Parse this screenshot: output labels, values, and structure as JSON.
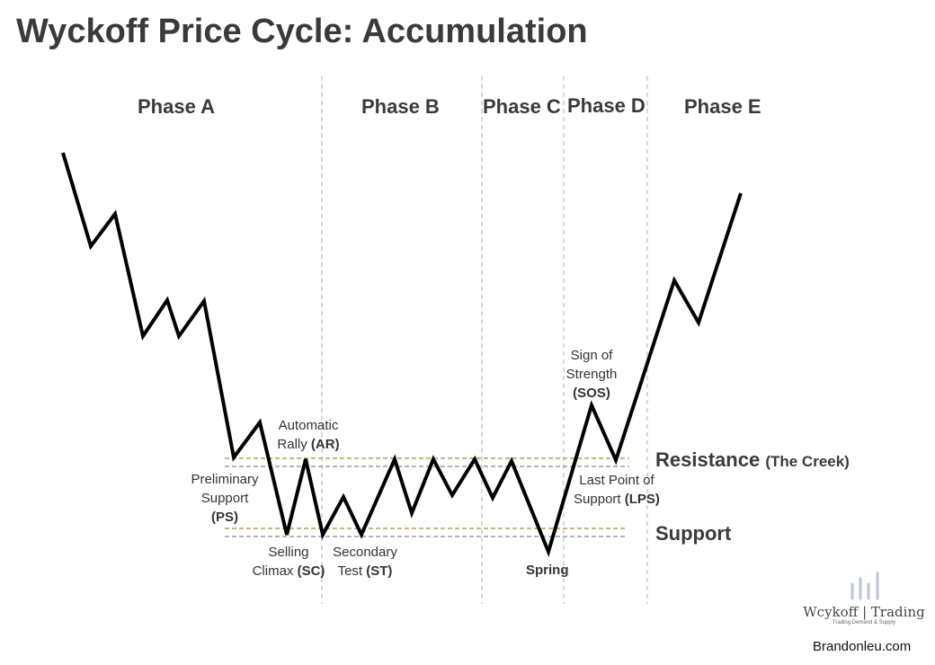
{
  "title": "Wyckoff Price Cycle: Accumulation",
  "phases": [
    "Phase A",
    "Phase B",
    "Phase C",
    "Phase D",
    "Phase E"
  ],
  "labels": {
    "ps": {
      "text": "Preliminary Support",
      "abbr": "(PS)"
    },
    "ar": {
      "text": "Automatic Rally",
      "abbr": "(AR)"
    },
    "sc": {
      "text": "Selling Climax",
      "abbr": "(SC)"
    },
    "st": {
      "text": "Secondary Test",
      "abbr": "(ST)"
    },
    "spring": "Spring",
    "sos": {
      "text": "Sign of Strength",
      "abbr": "(SOS)"
    },
    "lps": {
      "text": "Last Point of Support",
      "abbr": "(LPS)"
    }
  },
  "levels": {
    "resistance": "Resistance",
    "resistance_note": "(The Creek)",
    "support": "Support"
  },
  "colors": {
    "price_line": "#000000",
    "level_line": "#a08c3c",
    "divider": "#b0b0b0",
    "logo_bars": "#b8c4d8"
  },
  "logo": {
    "name": "Wcykoff | Trading",
    "tagline": "Trading Demand & Supply"
  },
  "site": "Brandonleu.com"
}
